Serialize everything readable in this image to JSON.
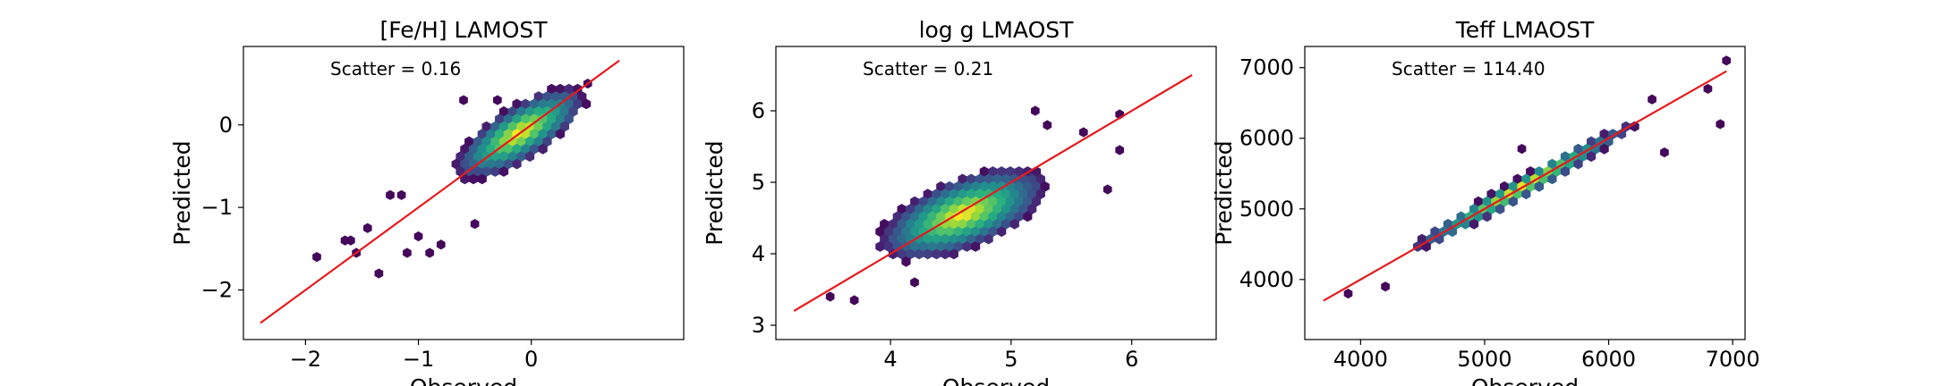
{
  "chart_data": [
    {
      "type": "scatter",
      "subtype": "hexbin",
      "colormap": "viridis",
      "title": "[Fe/H] LAMOST",
      "xlabel": "Observed",
      "ylabel": "Predicted",
      "annotation": "Scatter = 0.16",
      "xlim": [
        -2.55,
        1.35
      ],
      "ylim": [
        -2.6,
        0.95
      ],
      "xticks": [
        -2,
        -1,
        0
      ],
      "yticks": [
        -2,
        -1,
        0
      ],
      "xtick_labels": [
        "−2",
        "−1",
        "0"
      ],
      "ytick_labels": [
        "−2",
        "−1",
        "0"
      ],
      "one_to_one_line": [
        [
          -2.4,
          -2.4
        ],
        [
          0.78,
          0.78
        ]
      ],
      "line_color": "#e41a1c",
      "density_core": {
        "center": [
          -0.1,
          -0.1
        ],
        "spread_major": 0.75,
        "spread_minor": 0.28,
        "angle_deg": 44
      },
      "outliers": [
        [
          -1.9,
          -1.6
        ],
        [
          -1.6,
          -1.4
        ],
        [
          -1.55,
          -1.55
        ],
        [
          -1.45,
          -1.25
        ],
        [
          -1.35,
          -1.8
        ],
        [
          -1.15,
          -0.85
        ],
        [
          -1.0,
          -1.35
        ],
        [
          -1.65,
          -1.4
        ],
        [
          -0.8,
          -1.45
        ],
        [
          -0.9,
          -1.55
        ],
        [
          -0.5,
          -1.2
        ],
        [
          -0.6,
          0.3
        ],
        [
          -0.3,
          0.3
        ],
        [
          0.5,
          0.5
        ],
        [
          -1.25,
          -0.85
        ],
        [
          -1.1,
          -1.55
        ]
      ]
    },
    {
      "type": "scatter",
      "subtype": "hexbin",
      "colormap": "viridis",
      "title": "log g LMAOST",
      "xlabel": "Observed",
      "ylabel": "Predicted",
      "annotation": "Scatter = 0.21",
      "xlim": [
        3.05,
        6.7
      ],
      "ylim": [
        2.8,
        6.9
      ],
      "xticks": [
        4,
        5,
        6
      ],
      "yticks": [
        3,
        4,
        5,
        6
      ],
      "xtick_labels": [
        "4",
        "5",
        "6"
      ],
      "ytick_labels": [
        "3",
        "4",
        "5",
        "6"
      ],
      "one_to_one_line": [
        [
          3.2,
          3.2
        ],
        [
          6.5,
          6.5
        ]
      ],
      "line_color": "#e41a1c",
      "density_core": {
        "center": [
          4.6,
          4.55
        ],
        "spread_major": 0.85,
        "spread_minor": 0.42,
        "angle_deg": 42
      },
      "outliers": [
        [
          5.2,
          6.0
        ],
        [
          5.9,
          5.95
        ],
        [
          5.8,
          4.9
        ],
        [
          5.9,
          5.45
        ],
        [
          3.5,
          3.4
        ],
        [
          5.6,
          5.7
        ],
        [
          4.2,
          3.6
        ],
        [
          5.3,
          5.8
        ],
        [
          3.7,
          3.35
        ]
      ]
    },
    {
      "type": "scatter",
      "subtype": "hexbin",
      "colormap": "viridis",
      "title": "Teff LMAOST",
      "xlabel": "Observed",
      "ylabel": "Predicted",
      "annotation": "Scatter = 114.40",
      "xlim": [
        3550,
        7100
      ],
      "ylim": [
        3150,
        7300
      ],
      "xticks": [
        4000,
        5000,
        6000,
        7000
      ],
      "yticks": [
        4000,
        5000,
        6000,
        7000
      ],
      "xtick_labels": [
        "4000",
        "5000",
        "6000",
        "7000"
      ],
      "ytick_labels": [
        "4000",
        "5000",
        "6000",
        "7000"
      ],
      "one_to_one_line": [
        [
          3700,
          3700
        ],
        [
          6950,
          6950
        ]
      ],
      "line_color": "#e41a1c",
      "density_core": {
        "center": [
          5300,
          5300
        ],
        "spread_major": 1300,
        "spread_minor": 110,
        "angle_deg": 45
      },
      "outliers": [
        [
          6900,
          6200
        ],
        [
          6950,
          7100
        ],
        [
          6800,
          6700
        ],
        [
          5300,
          5850
        ],
        [
          6450,
          5800
        ],
        [
          6350,
          6550
        ],
        [
          3900,
          3800
        ],
        [
          4200,
          3900
        ]
      ]
    }
  ]
}
